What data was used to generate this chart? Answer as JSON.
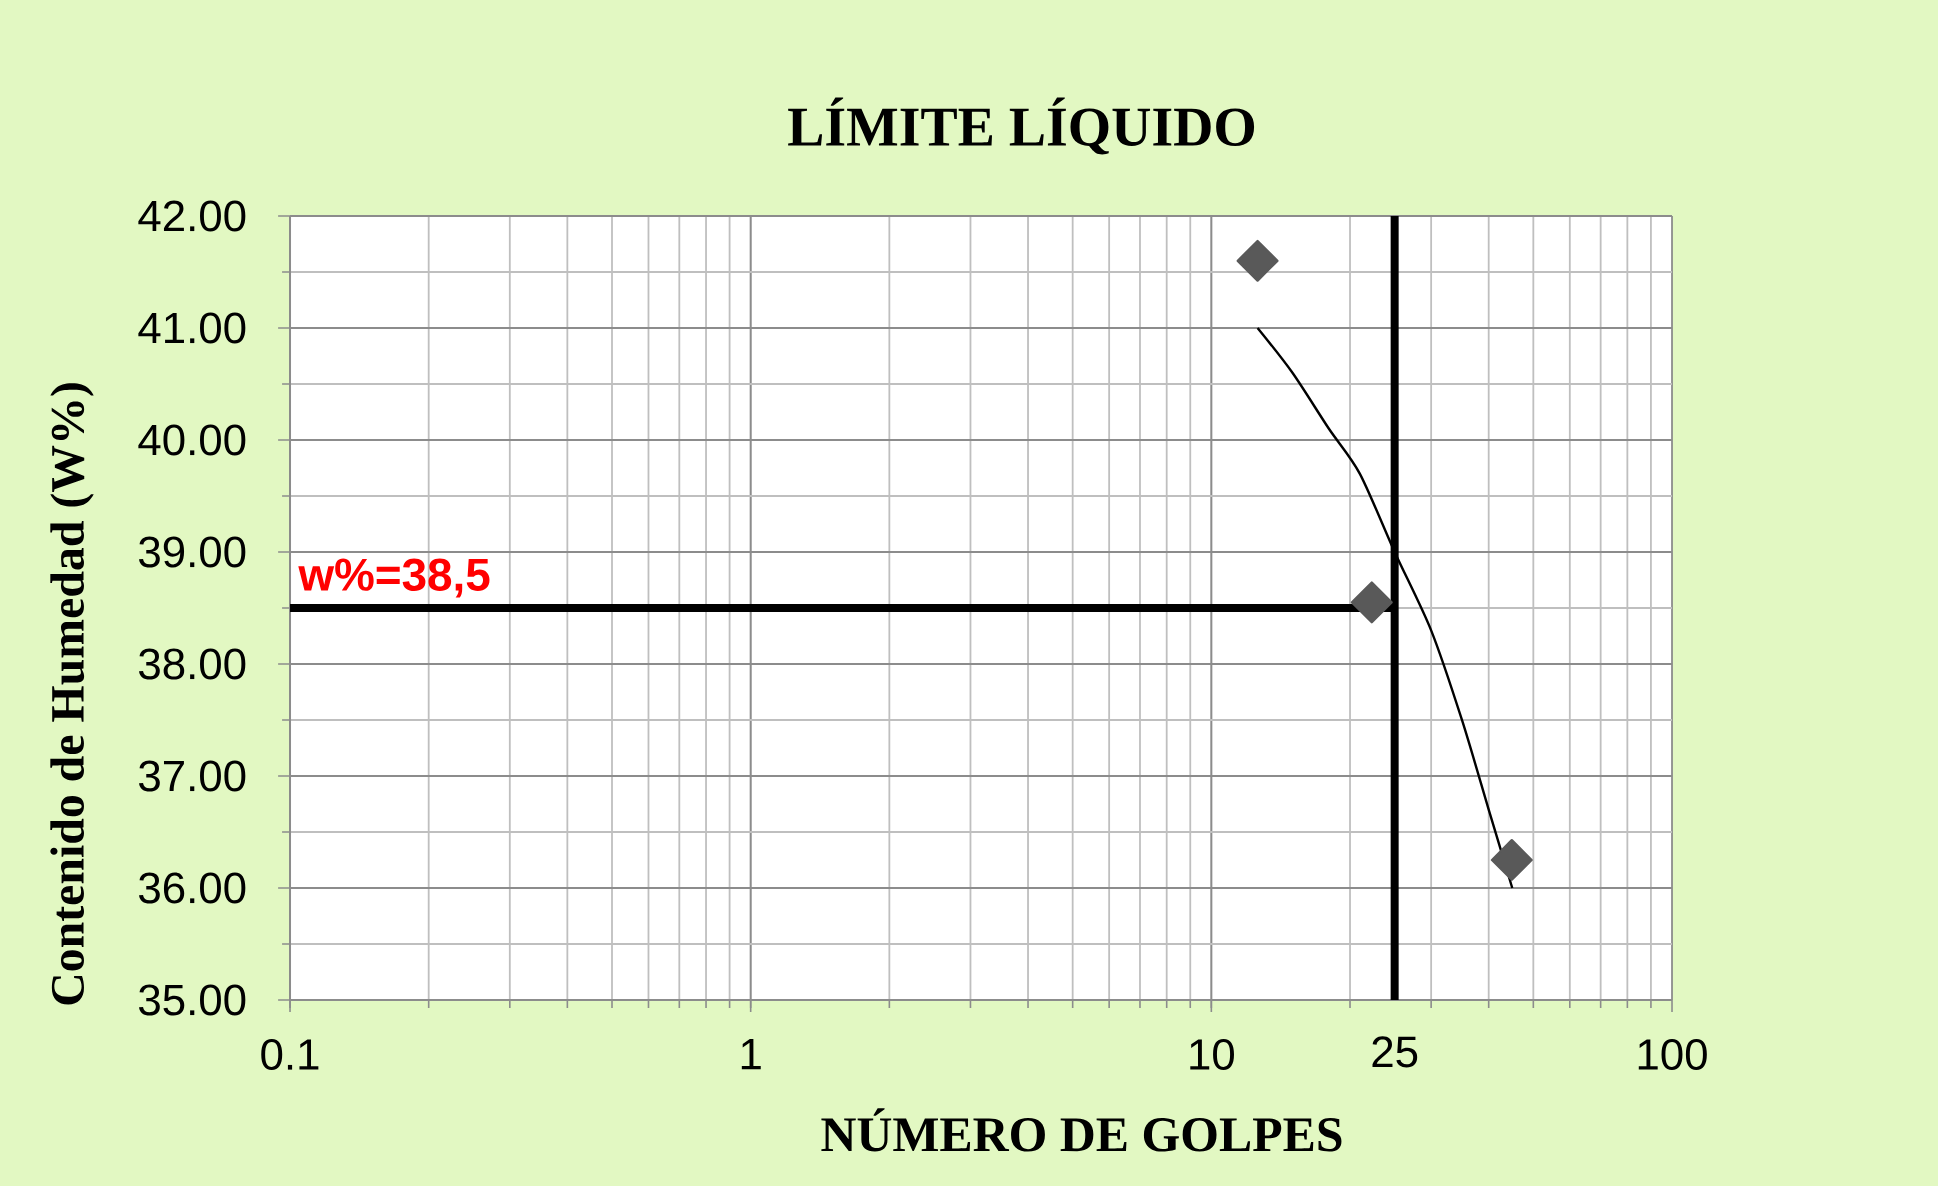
{
  "chart_data": {
    "type": "scatter",
    "title": "LÍMITE LÍQUIDO",
    "xlabel": "NÚMERO DE GOLPES",
    "ylabel": "Contenido de Humedad (W%)",
    "log": "x",
    "xlim": [
      0.1,
      100
    ],
    "xticks": [
      0.1,
      1,
      10,
      100
    ],
    "ylim": [
      35,
      42
    ],
    "yticks": [
      {
        "value": 35,
        "label": "35.00"
      },
      {
        "value": 36,
        "label": "36.00"
      },
      {
        "value": 37,
        "label": "37.00"
      },
      {
        "value": 38,
        "label": "38.00"
      },
      {
        "value": 39,
        "label": "39.00"
      },
      {
        "value": 40,
        "label": "40.00"
      },
      {
        "value": 41,
        "label": "41.00"
      },
      {
        "value": 42,
        "label": "42.00"
      }
    ],
    "grid": true,
    "marker": "diamond",
    "series": [
      {
        "color": "#595959",
        "x": [
          12.6,
          22.3,
          44.9
        ],
        "values": [
          41.6,
          38.55,
          36.25
        ]
      },
      {
        "type": "line",
        "marker": "none",
        "color": "#000000",
        "x": [
          12.6,
          15,
          18,
          21,
          25,
          30,
          35,
          40,
          45
        ],
        "values": [
          41.0,
          40.6,
          40.1,
          39.7,
          39.0,
          38.3,
          37.5,
          36.7,
          36.0
        ]
      }
    ],
    "ref_lines": [
      {
        "axis": "x",
        "value": 25,
        "label": "25",
        "color": "#000000"
      },
      {
        "axis": "y",
        "value": 38.5,
        "label": "w%=38,5",
        "color": "#000000"
      }
    ]
  }
}
